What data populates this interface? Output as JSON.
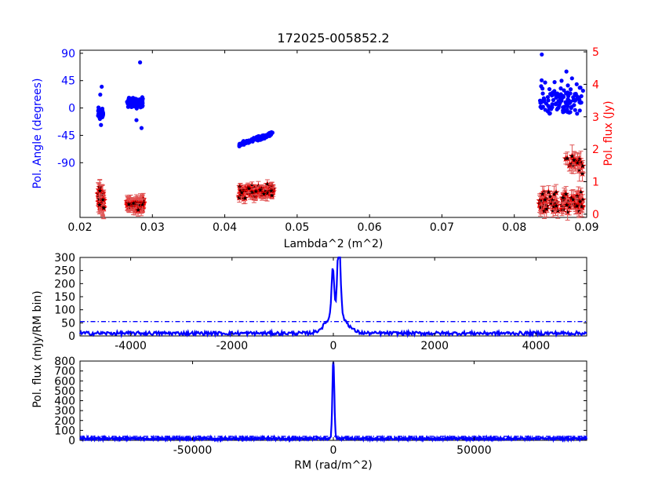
{
  "colors": {
    "blue": "#0000ff",
    "red": "#ff0000",
    "black": "#000000",
    "errbar": "#e05555"
  },
  "chart_data": [
    {
      "type": "scatter",
      "title": "172025-005852.2",
      "xlabel": "Lambda^2 (m^2)",
      "ylabel_left": "Pol. Angle (degrees)",
      "ylabel_right": "Pol. flux (Jy)",
      "xlim": [
        0.02,
        0.09
      ],
      "xticks": [
        "0.02",
        "0.03",
        "0.04",
        "0.05",
        "0.06",
        "0.07",
        "0.08",
        "0.09"
      ],
      "ylim_left": [
        -180,
        95
      ],
      "yticks_left": [
        "90",
        "45",
        "0",
        "-45",
        "-90"
      ],
      "ylim_right": [
        -0.1,
        5.05
      ],
      "yticks_right": [
        "0",
        "1",
        "2",
        "3",
        "4",
        "5"
      ],
      "series": [
        {
          "axis": "left",
          "marker": "circle",
          "color": "blue",
          "groups": [
            {
              "x": [
                0.0225,
                0.0232
              ],
              "center": -10,
              "spread": 14,
              "n": 45,
              "outliers": [
                [
                  0.023,
                  35
                ],
                [
                  0.0228,
                  22
                ],
                [
                  0.0229,
                  -28
                ]
              ]
            },
            {
              "x": [
                0.0265,
                0.0287
              ],
              "center": 8,
              "spread": 13,
              "n": 150,
              "outliers": [
                [
                  0.0283,
                  75
                ],
                [
                  0.0285,
                  -33
                ],
                [
                  0.0278,
                  -20
                ]
              ]
            },
            {
              "x": [
                0.042,
                0.0466
              ],
              "slope": [
                -60,
                -42
              ],
              "spread": 5,
              "n": 110,
              "outliers": []
            },
            {
              "x": [
                0.0835,
                0.0895
              ],
              "center": 15,
              "spread": 50,
              "n": 110,
              "outliers": [
                [
                  0.0838,
                  88
                ],
                [
                  0.0872,
                  60
                ]
              ]
            }
          ]
        },
        {
          "axis": "right",
          "marker": "star",
          "color": "black",
          "groups": [
            {
              "x": [
                0.0225,
                0.0233
              ],
              "center": 0.45,
              "spread": 0.3,
              "n": 45,
              "err": 0.25
            },
            {
              "x": [
                0.0265,
                0.0288
              ],
              "center": 0.3,
              "spread": 0.15,
              "n": 130,
              "err": 0.15
            },
            {
              "x": [
                0.042,
                0.0467
              ],
              "center": 0.7,
              "spread": 0.18,
              "n": 120,
              "err": 0.12
            },
            {
              "x": [
                0.0835,
                0.0895
              ],
              "center": 0.35,
              "spread": 0.3,
              "n": 90,
              "err": 0.2
            },
            {
              "x": [
                0.087,
                0.0895
              ],
              "center": 1.5,
              "spread": 0.4,
              "n": 20,
              "err": 0.25
            }
          ]
        }
      ]
    },
    {
      "type": "line",
      "ylabel": "Pol. flux (mJy/RM bin)",
      "xlim": [
        -5000,
        5000
      ],
      "xticks": [
        "-4000",
        "-2000",
        "0",
        "2000",
        "4000"
      ],
      "ylim": [
        0,
        300
      ],
      "yticks": [
        "0",
        "50",
        "100",
        "150",
        "200",
        "250",
        "300"
      ],
      "threshold": 55,
      "peaks": [
        {
          "rm": -10,
          "value": 180,
          "width": 25
        },
        {
          "rm": 110,
          "value": 295,
          "width": 30
        },
        {
          "rm": 60,
          "value": 80,
          "width": 180
        }
      ],
      "noise_level": 12
    },
    {
      "type": "line",
      "xlabel": "RM (rad/m^2)",
      "xlim": [
        -90000,
        90000
      ],
      "xticks": [
        "-50000",
        "0",
        "50000"
      ],
      "ylim": [
        0,
        800
      ],
      "yticks": [
        "0",
        "100",
        "200",
        "300",
        "400",
        "500",
        "600",
        "700",
        "800"
      ],
      "threshold": 40,
      "peaks": [
        {
          "rm": 0,
          "value": 780,
          "width": 350
        }
      ],
      "noise_level": 20
    }
  ]
}
